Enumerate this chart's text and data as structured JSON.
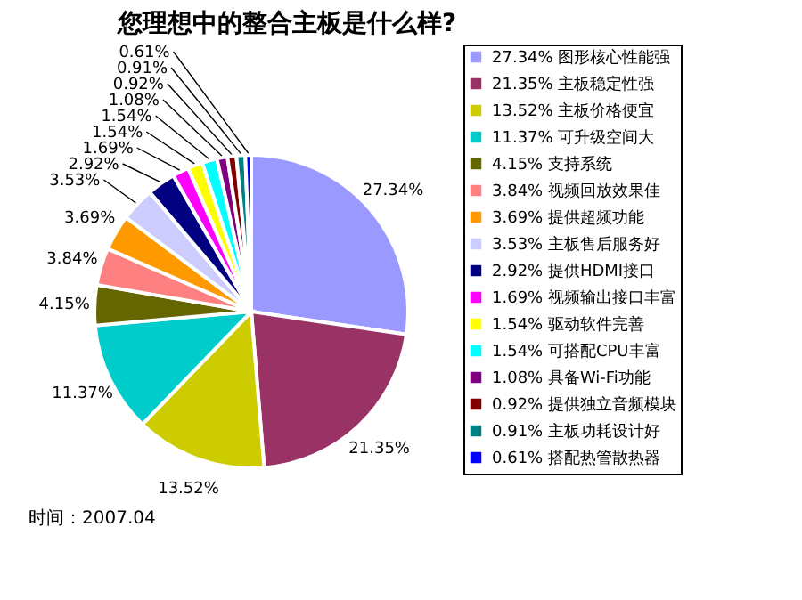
{
  "chart_data": {
    "type": "pie",
    "title": "您理想中的整合主板是什么样?",
    "categories": [
      "27.34% 图形核心性能强",
      "21.35% 主板稳定性强",
      "13.52% 主板价格便宜",
      "11.37% 可升级空间大",
      "4.15% 支持系统",
      "3.84% 视频回放效果佳",
      "3.69% 提供超频功能",
      "3.53% 主板售后服务好",
      "2.92% 提供HDMI接口",
      "1.69% 视频输出接口丰富",
      "1.54% 驱动软件完善",
      "1.54% 可搭配CPU丰富",
      "1.08% 具备Wi-Fi功能",
      "0.92% 提供独立音频模块",
      "0.91% 主板功耗设计好",
      "0.61% 搭配热管散热器"
    ],
    "values": [
      27.34,
      21.35,
      13.52,
      11.37,
      4.15,
      3.84,
      3.69,
      3.53,
      2.92,
      1.69,
      1.54,
      1.54,
      1.08,
      0.92,
      0.91,
      0.61
    ],
    "colors": [
      "#9999ff",
      "#993366",
      "#cccc00",
      "#00cccc",
      "#666600",
      "#ff8080",
      "#ff9900",
      "#ccccff",
      "#000080",
      "#ff00ff",
      "#ffff00",
      "#00ffff",
      "#800080",
      "#800000",
      "#008080",
      "#0000ff"
    ],
    "value_labels": [
      "27.34%",
      "21.35%",
      "13.52%",
      "11.37%",
      "4.15%",
      "3.84%",
      "3.69%",
      "3.53%",
      "2.92%",
      "1.69%",
      "1.54%",
      "1.54%",
      "1.08%",
      "0.92%",
      "0.91%",
      "0.61%"
    ],
    "legend": "right",
    "annotations": [
      "时间：2007.04"
    ]
  }
}
